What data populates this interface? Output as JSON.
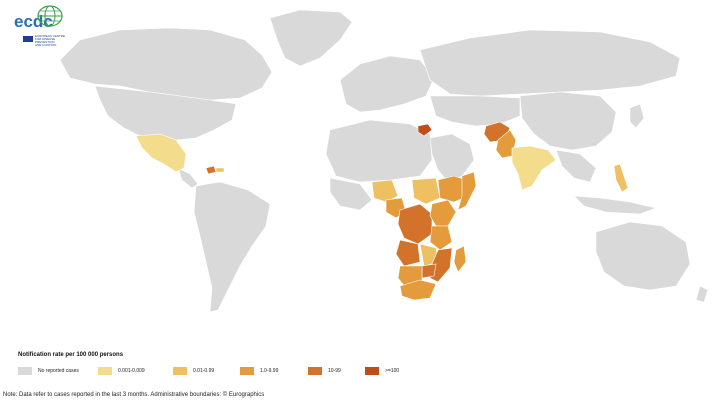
{
  "logo": {
    "name": "ecdc",
    "org_lines": [
      "EUROPEAN CENTRE",
      "FOR DISEASE",
      "PREVENTION",
      "AND CONTROL"
    ]
  },
  "legend": {
    "title": "Notification rate per 100 000 persons",
    "items": [
      {
        "label": "No reported cases",
        "color": "#d9d9d9"
      },
      {
        "label": "0.001-0.009",
        "color": "#f3dd8c"
      },
      {
        "label": "0.01-0.99",
        "color": "#eec061"
      },
      {
        "label": "1.0-9.99",
        "color": "#e49b3c"
      },
      {
        "label": "10-99",
        "color": "#d3722a"
      },
      {
        "label": ">=100",
        "color": "#c24c18"
      }
    ]
  },
  "note": "Note: Data refer to cases reported in the last 3 months. Administrative boundaries: © Eurographics",
  "colors": {
    "land": "#d9d9d9",
    "border": "#ffffff",
    "ocean": "#ffffff"
  }
}
